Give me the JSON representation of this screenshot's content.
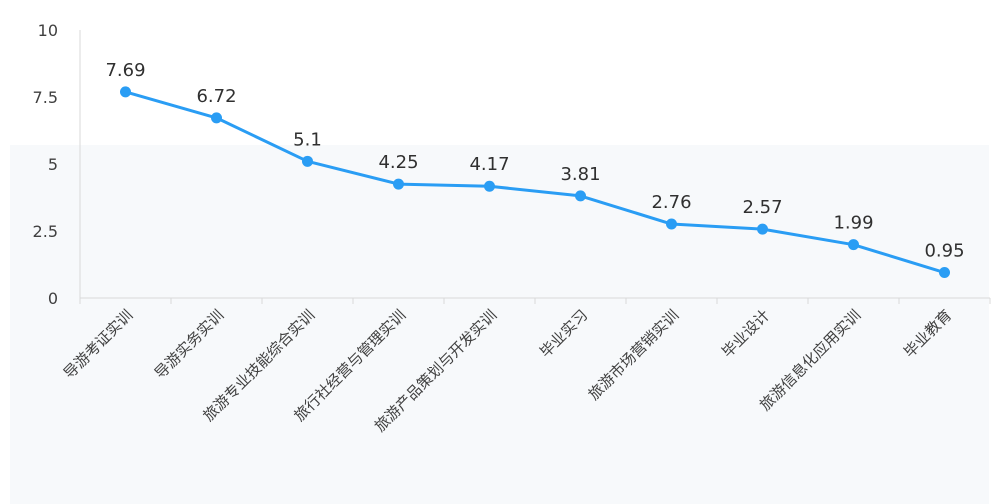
{
  "chart_data": {
    "type": "line",
    "categories": [
      "导游考证实训",
      "导游实务实训",
      "旅游专业技能综合实训",
      "旅行社经营与管理实训",
      "旅游产品策划与开发实训",
      "毕业实习",
      "旅游市场营销实训",
      "毕业设计",
      "旅游信息化应用实训",
      "毕业教育"
    ],
    "values": [
      7.69,
      6.72,
      5.1,
      4.25,
      4.17,
      3.81,
      2.76,
      2.57,
      1.99,
      0.95
    ],
    "value_labels": [
      "7.69",
      "6.72",
      "5.1",
      "4.25",
      "4.17",
      "3.81",
      "2.76",
      "2.57",
      "1.99",
      "0.95"
    ],
    "yticks": [
      "0",
      "2.5",
      "5",
      "7.5",
      "10"
    ],
    "ylim": [
      0,
      10
    ],
    "title": "",
    "xlabel": "",
    "ylabel": "",
    "grid": false,
    "legend": "none",
    "series_color": "#2A9DF4",
    "axis_color": "#D9D9D9",
    "shaded_band_color": "#F7F9FB"
  }
}
